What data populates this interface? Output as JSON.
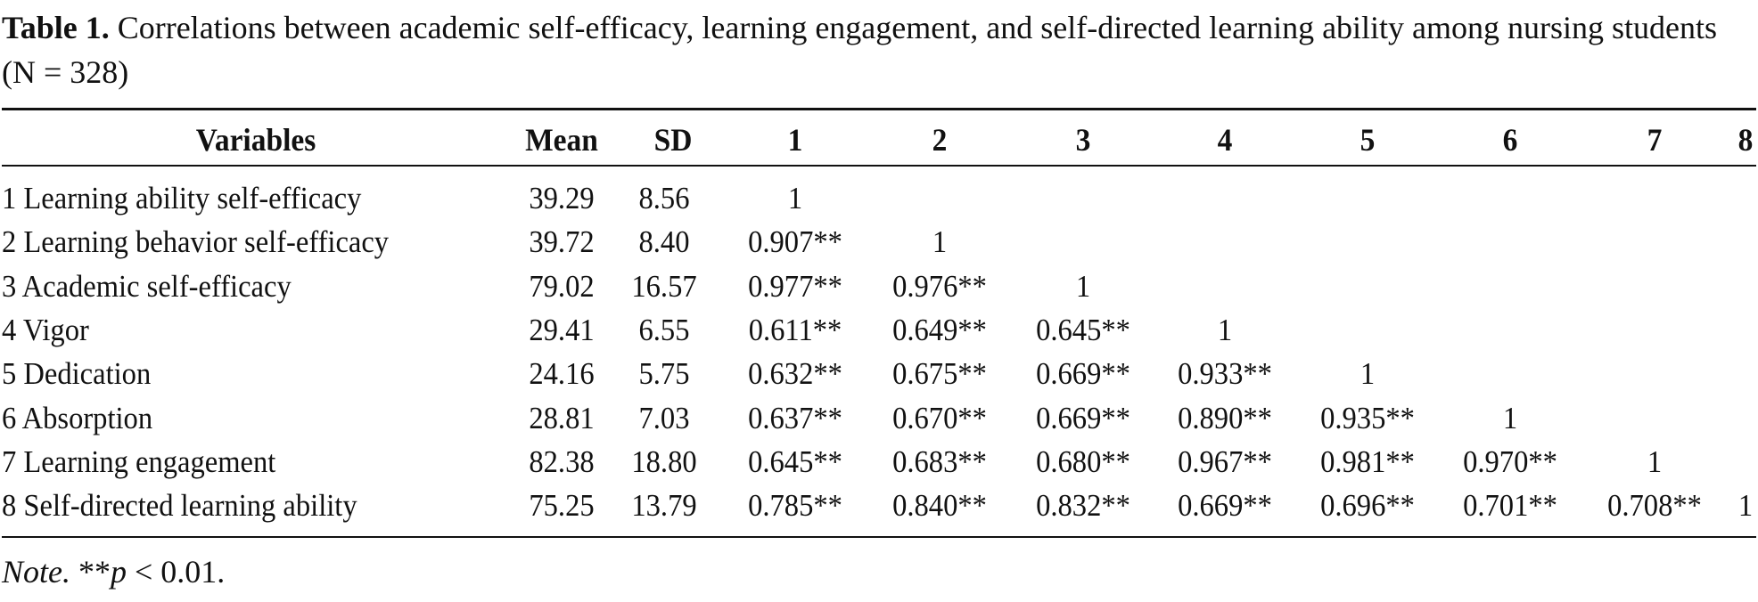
{
  "caption": {
    "label": "Table 1.",
    "text": "Correlations between academic self-efficacy, learning engagement, and self-directed learning ability among nursing students (N = 328)"
  },
  "table": {
    "headers": [
      "Variables",
      "Mean",
      "SD",
      "1",
      "2",
      "3",
      "4",
      "5",
      "6",
      "7",
      "8"
    ],
    "rows": [
      {
        "variable": "1 Learning ability self-efficacy",
        "mean": "39.29",
        "sd": "8.56",
        "c": [
          "1",
          "",
          "",
          "",
          "",
          "",
          "",
          ""
        ]
      },
      {
        "variable": "2 Learning behavior self-efficacy",
        "mean": "39.72",
        "sd": "8.40",
        "c": [
          "0.907**",
          "1",
          "",
          "",
          "",
          "",
          "",
          ""
        ]
      },
      {
        "variable": "3 Academic self-efficacy",
        "mean": "79.02",
        "sd": "16.57",
        "c": [
          "0.977**",
          "0.976**",
          "1",
          "",
          "",
          "",
          "",
          ""
        ]
      },
      {
        "variable": "4 Vigor",
        "mean": "29.41",
        "sd": "6.55",
        "c": [
          "0.611**",
          "0.649**",
          "0.645**",
          "1",
          "",
          "",
          "",
          ""
        ]
      },
      {
        "variable": "5 Dedication",
        "mean": "24.16",
        "sd": "5.75",
        "c": [
          "0.632**",
          "0.675**",
          "0.669**",
          "0.933**",
          "1",
          "",
          "",
          ""
        ]
      },
      {
        "variable": "6 Absorption",
        "mean": "28.81",
        "sd": "7.03",
        "c": [
          "0.637**",
          "0.670**",
          "0.669**",
          "0.890**",
          "0.935**",
          "1",
          "",
          ""
        ]
      },
      {
        "variable": "7 Learning engagement",
        "mean": "82.38",
        "sd": "18.80",
        "c": [
          "0.645**",
          "0.683**",
          "0.680**",
          "0.967**",
          "0.981**",
          "0.970**",
          "1",
          ""
        ]
      },
      {
        "variable": "8 Self-directed learning ability",
        "mean": "75.25",
        "sd": "13.79",
        "c": [
          "0.785**",
          "0.840**",
          "0.832**",
          "0.669**",
          "0.696**",
          "0.701**",
          "0.708**",
          "1"
        ]
      }
    ]
  },
  "note": {
    "label": "Note.",
    "stars": "**",
    "p": "p",
    "rest": " < 0.01."
  }
}
